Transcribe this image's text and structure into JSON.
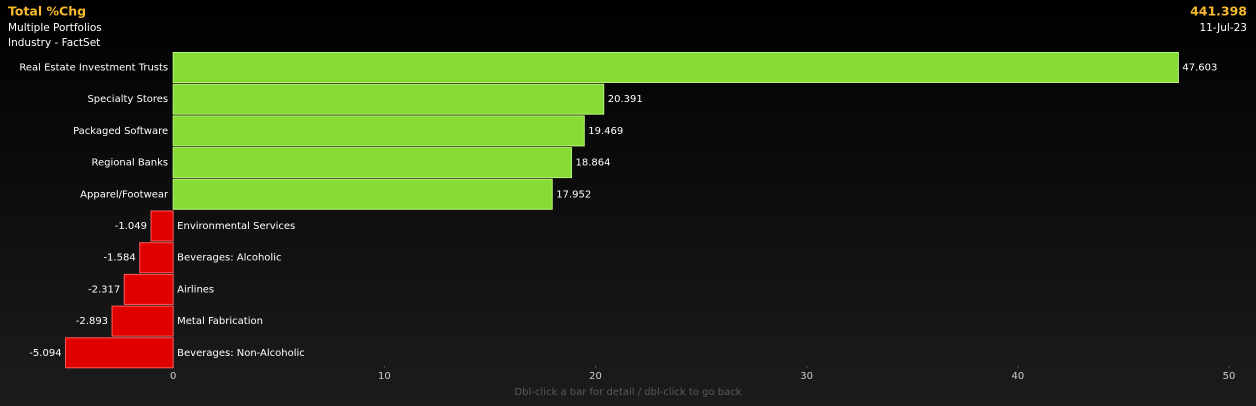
{
  "chart_data": {
    "type": "bar",
    "orientation": "horizontal",
    "title": "Total %Chg",
    "subtitle": "Multiple Portfolios",
    "source": "Industry - FactSet",
    "total": 441.398,
    "date": "11-Jul-23",
    "categories": [
      "Real Estate Investment Trusts",
      "Specialty Stores",
      "Packaged Software",
      "Regional Banks",
      "Apparel/Footwear",
      "Environmental Services",
      "Beverages: Alcoholic",
      "Airlines",
      "Metal Fabrication",
      "Beverages: Non-Alcoholic"
    ],
    "values": [
      47.603,
      20.391,
      19.469,
      18.864,
      17.952,
      -1.049,
      -1.584,
      -2.317,
      -2.893,
      -5.094
    ],
    "positive_color": "#86dc34",
    "negative_color": "#e00000",
    "xlim": [
      -8.2,
      50
    ],
    "xticks": [
      0,
      10,
      20,
      30,
      40,
      50
    ],
    "footer": "Dbl-click a bar for detail / dbl-click to go back"
  }
}
